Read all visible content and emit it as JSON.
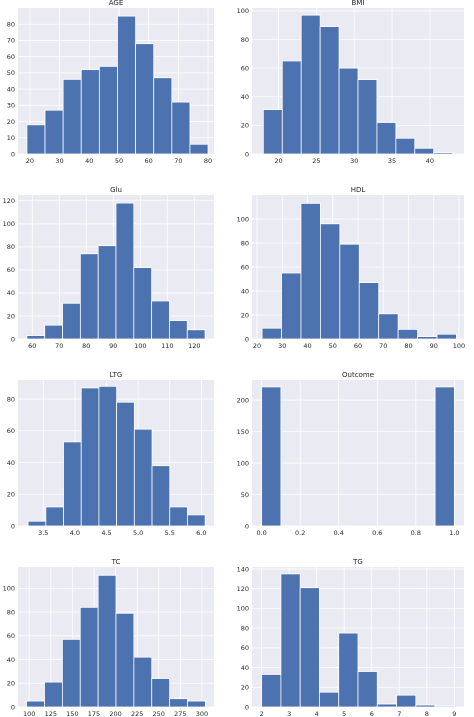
{
  "figure": {
    "background": "#ffffff",
    "panel_bg": "#eaeaf2",
    "grid_color": "#ffffff",
    "bar_color": "#4c72b0"
  },
  "chart_data": [
    {
      "type": "bar",
      "title": "AGE",
      "bin_edges": [
        19,
        25.1,
        31.2,
        37.3,
        43.4,
        49.5,
        55.6,
        61.7,
        67.8,
        73.9,
        80
      ],
      "values": [
        18,
        27,
        46,
        52,
        54,
        85,
        68,
        47,
        32,
        6
      ],
      "xlim": [
        16,
        82
      ],
      "ylim": [
        0,
        90
      ],
      "xticks": [
        20,
        30,
        40,
        50,
        60,
        70,
        80
      ],
      "xtick_labels": [
        "20",
        "30",
        "40",
        "50",
        "60",
        "70",
        "80"
      ],
      "yticks": [
        0,
        10,
        20,
        30,
        40,
        50,
        60,
        70,
        80
      ],
      "ytick_labels": [
        "0",
        "10",
        "20",
        "30",
        "40",
        "50",
        "60",
        "70",
        "80"
      ]
    },
    {
      "type": "bar",
      "title": "BMI",
      "bin_edges": [
        18,
        20.5,
        23,
        25.5,
        28,
        30.5,
        33,
        35.5,
        38,
        40.5,
        43
      ],
      "values": [
        31,
        65,
        97,
        89,
        60,
        52,
        22,
        11,
        4,
        1
      ],
      "xlim": [
        16.5,
        44.5
      ],
      "ylim": [
        0,
        102
      ],
      "xticks": [
        20,
        25,
        30,
        35,
        40
      ],
      "xtick_labels": [
        "20",
        "25",
        "30",
        "35",
        "40"
      ],
      "yticks": [
        0,
        20,
        40,
        60,
        80,
        100
      ],
      "ytick_labels": [
        "0",
        "20",
        "40",
        "60",
        "80",
        "100"
      ]
    },
    {
      "type": "bar",
      "title": "Glu",
      "bin_edges": [
        58,
        64.6,
        71.2,
        77.8,
        84.4,
        91,
        97.6,
        104.2,
        110.8,
        117.4,
        124
      ],
      "values": [
        3,
        12,
        31,
        74,
        81,
        118,
        62,
        33,
        16,
        8
      ],
      "xlim": [
        54.7,
        127.3
      ],
      "ylim": [
        0,
        125
      ],
      "xticks": [
        60,
        70,
        80,
        90,
        100,
        110,
        120
      ],
      "xtick_labels": [
        "60",
        "70",
        "80",
        "90",
        "100",
        "110",
        "120"
      ],
      "yticks": [
        0,
        20,
        40,
        60,
        80,
        100,
        120
      ],
      "ytick_labels": [
        "0",
        "20",
        "40",
        "60",
        "80",
        "100",
        "120"
      ]
    },
    {
      "type": "bar",
      "title": "HDL",
      "bin_edges": [
        22,
        29.7,
        37.4,
        45.1,
        52.8,
        60.5,
        68.2,
        75.9,
        83.6,
        91.3,
        99
      ],
      "values": [
        9,
        55,
        113,
        96,
        79,
        47,
        21,
        8,
        2,
        4
      ],
      "xlim": [
        18,
        102
      ],
      "ylim": [
        0,
        120
      ],
      "xticks": [
        20,
        30,
        40,
        50,
        60,
        70,
        80,
        90,
        100
      ],
      "xtick_labels": [
        "20",
        "30",
        "40",
        "50",
        "60",
        "70",
        "80",
        "90",
        "100"
      ],
      "yticks": [
        0,
        20,
        40,
        60,
        80,
        100
      ],
      "ytick_labels": [
        "0",
        "20",
        "40",
        "60",
        "80",
        "100"
      ]
    },
    {
      "type": "bar",
      "title": "LTG",
      "bin_edges": [
        3.26,
        3.54,
        3.82,
        4.1,
        4.38,
        4.66,
        4.94,
        5.22,
        5.5,
        5.78,
        6.06
      ],
      "values": [
        3,
        12,
        53,
        87,
        88,
        78,
        61,
        38,
        12,
        7
      ],
      "xlim": [
        3.1,
        6.2
      ],
      "ylim": [
        0,
        92
      ],
      "xticks": [
        3.5,
        4.0,
        4.5,
        5.0,
        5.5,
        6.0
      ],
      "xtick_labels": [
        "3.5",
        "4.0",
        "4.5",
        "5.0",
        "5.5",
        "6.0"
      ],
      "yticks": [
        0,
        20,
        40,
        60,
        80
      ],
      "ytick_labels": [
        "0",
        "20",
        "40",
        "60",
        "80"
      ]
    },
    {
      "type": "bar",
      "title": "Outcome",
      "bin_edges": [
        0,
        0.1,
        0.2,
        0.3,
        0.4,
        0.5,
        0.6,
        0.7,
        0.8,
        0.9,
        1.0
      ],
      "values": [
        221,
        0,
        0,
        0,
        0,
        0,
        0,
        0,
        0,
        221
      ],
      "xlim": [
        -0.05,
        1.05
      ],
      "ylim": [
        0,
        232
      ],
      "xticks": [
        0.0,
        0.2,
        0.4,
        0.6,
        0.8,
        1.0
      ],
      "xtick_labels": [
        "0.0",
        "0.2",
        "0.4",
        "0.6",
        "0.8",
        "1.0"
      ],
      "yticks": [
        0,
        50,
        100,
        150,
        200
      ],
      "ytick_labels": [
        "0",
        "50",
        "100",
        "150",
        "200"
      ]
    },
    {
      "type": "bar",
      "title": "TC",
      "bin_edges": [
        97,
        117.7,
        138.4,
        159.1,
        179.8,
        200.5,
        221.2,
        241.9,
        262.6,
        283.3,
        304
      ],
      "values": [
        5,
        21,
        57,
        84,
        111,
        79,
        42,
        24,
        7,
        5
      ],
      "xlim": [
        87,
        314
      ],
      "ylim": [
        0,
        118
      ],
      "xticks": [
        100,
        125,
        150,
        175,
        200,
        225,
        250,
        275,
        300
      ],
      "xtick_labels": [
        "100",
        "125",
        "150",
        "175",
        "200",
        "225",
        "250",
        "275",
        "300"
      ],
      "yticks": [
        0,
        20,
        40,
        60,
        80,
        100
      ],
      "ytick_labels": [
        "0",
        "20",
        "40",
        "60",
        "80",
        "100"
      ]
    },
    {
      "type": "bar",
      "title": "TG",
      "bin_edges": [
        2,
        2.7,
        3.4,
        4.1,
        4.8,
        5.5,
        6.2,
        6.9,
        7.6,
        8.3,
        9
      ],
      "values": [
        33,
        135,
        121,
        15,
        75,
        36,
        3,
        12,
        2,
        1
      ],
      "xlim": [
        1.65,
        9.35
      ],
      "ylim": [
        0,
        142
      ],
      "xticks": [
        2,
        3,
        4,
        5,
        6,
        7,
        8,
        9
      ],
      "xtick_labels": [
        "2",
        "3",
        "4",
        "5",
        "6",
        "7",
        "8",
        "9"
      ],
      "yticks": [
        0,
        20,
        40,
        60,
        80,
        100,
        120,
        140
      ],
      "ytick_labels": [
        "0",
        "20",
        "40",
        "60",
        "80",
        "100",
        "120",
        "140"
      ]
    }
  ]
}
